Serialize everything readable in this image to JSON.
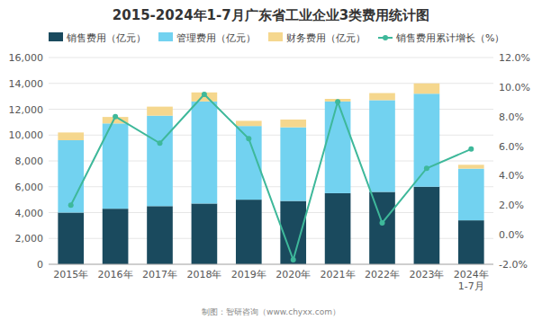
{
  "chart_data": {
    "type": "bar",
    "title": "2015-2024年1-7月广东省工业企业3类费用统计图",
    "categories": [
      "2015年",
      "2016年",
      "2017年",
      "2018年",
      "2019年",
      "2020年",
      "2021年",
      "2022年",
      "2023年",
      "2024年\n1-7月"
    ],
    "stacked": true,
    "grid": true,
    "legend": "upper left",
    "series": [
      {
        "name": "销售费用（亿元）",
        "type": "bar",
        "color": "#1a4a5e",
        "values": [
          4000,
          4300,
          4500,
          4700,
          5000,
          4900,
          5500,
          5600,
          6000,
          3400
        ]
      },
      {
        "name": "管理费用（亿元）",
        "type": "bar",
        "color": "#72d2f0",
        "values": [
          5600,
          6600,
          7000,
          7900,
          5700,
          5700,
          7100,
          7100,
          7200,
          4000
        ]
      },
      {
        "name": "财务费用（亿元）",
        "type": "bar",
        "color": "#f5d78e",
        "values": [
          600,
          500,
          700,
          700,
          400,
          600,
          200,
          550,
          800,
          300
        ]
      },
      {
        "name": "销售费用累计增长（%）",
        "type": "line",
        "axis": "y2",
        "marker": "circle",
        "color": "#3eb89a",
        "values": [
          2.0,
          8.0,
          6.2,
          9.5,
          6.5,
          -1.7,
          9.0,
          0.8,
          4.5,
          5.8
        ]
      }
    ],
    "ylim": [
      0,
      16000
    ],
    "yticks": [
      0,
      {
        "value": 2000,
        "label": "2,000"
      },
      {
        "value": 4000,
        "label": "4,000"
      },
      {
        "value": 6000,
        "label": "6,000"
      },
      {
        "value": 8000,
        "label": "8,000"
      },
      {
        "value": 10000,
        "label": "10,000"
      },
      {
        "value": 12000,
        "label": "12,000"
      },
      {
        "value": 14000,
        "label": "14,000"
      },
      {
        "value": 16000,
        "label": "16,000"
      }
    ],
    "y2lim": [
      -2.0,
      12.0
    ],
    "y2ticks": [
      {
        "value": -2.0,
        "label": "-2.0%"
      },
      {
        "value": 0.0,
        "label": "0.0%"
      },
      {
        "value": 2.0,
        "label": "2.0%"
      },
      {
        "value": 4.0,
        "label": "4.0%"
      },
      {
        "value": 6.0,
        "label": "6.0%"
      },
      {
        "value": 8.0,
        "label": "8.0%"
      },
      {
        "value": 10.0,
        "label": "10.0%"
      },
      {
        "value": 12.0,
        "label": "12.0%"
      }
    ],
    "annotations": [
      "制图：智研咨询（www.chyxx.com）"
    ]
  }
}
